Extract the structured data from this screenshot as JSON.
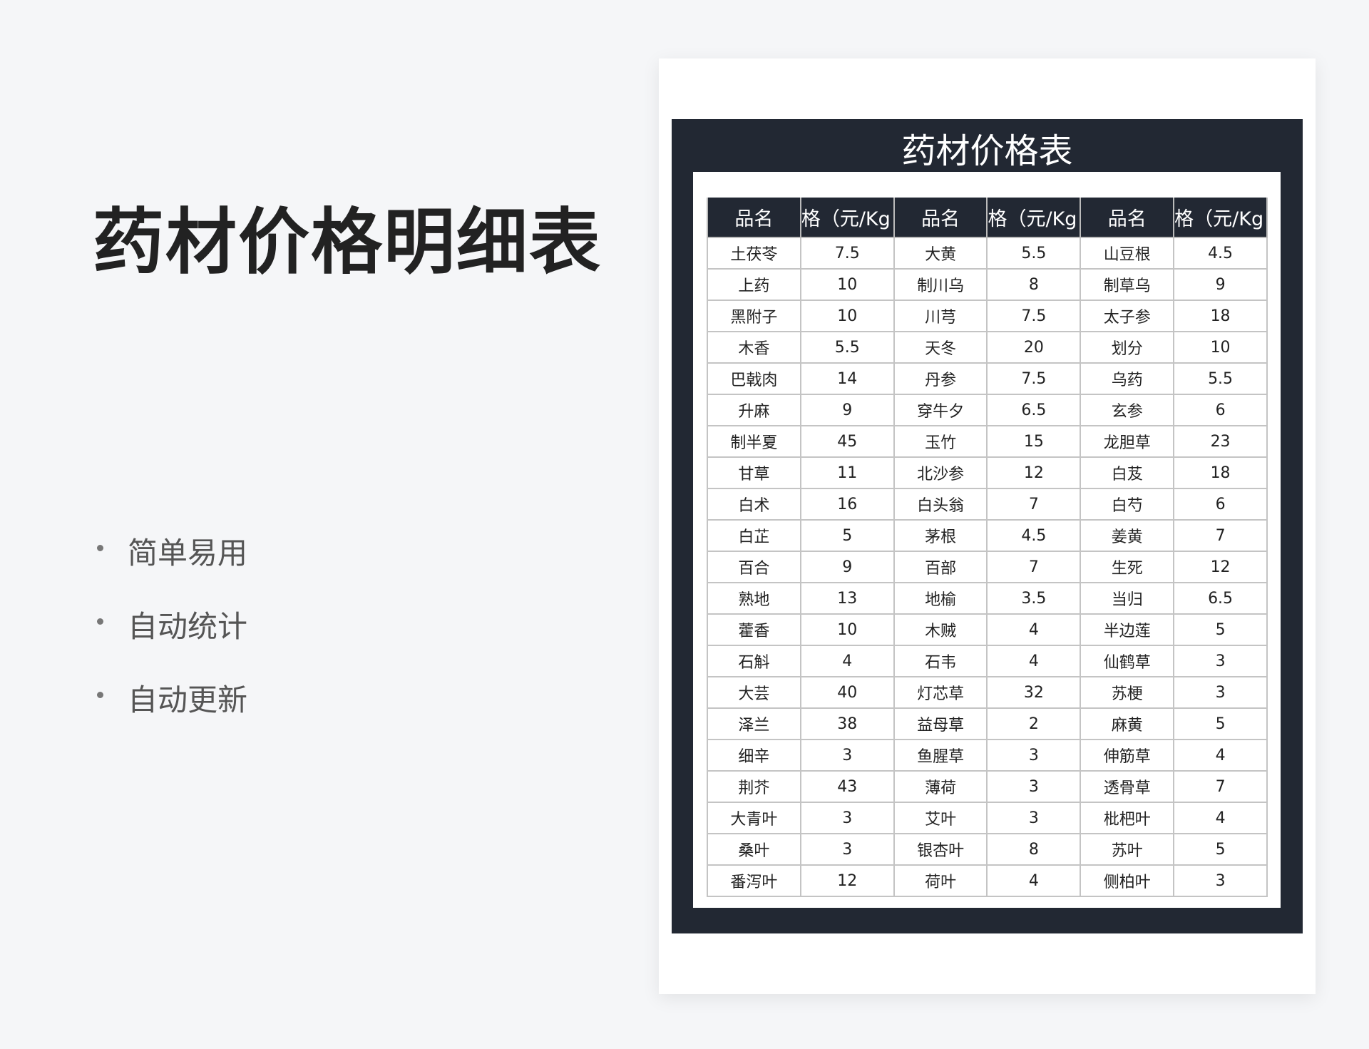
{
  "page_title": "药材价格明细表",
  "features": [
    "简单易用",
    "自动统计",
    "自动更新"
  ],
  "sheet": {
    "title": "药材价格表",
    "headers": [
      "品名",
      "格（元/Kg",
      "品名",
      "格（元/Kg",
      "品名",
      "格（元/Kg"
    ],
    "rows": [
      [
        "土茯苓",
        "7.5",
        "大黄",
        "5.5",
        "山豆根",
        "4.5"
      ],
      [
        "上药",
        "10",
        "制川乌",
        "8",
        "制草乌",
        "9"
      ],
      [
        "黑附子",
        "10",
        "川芎",
        "7.5",
        "太子参",
        "18"
      ],
      [
        "木香",
        "5.5",
        "天冬",
        "20",
        "划分",
        "10"
      ],
      [
        "巴戟肉",
        "14",
        "丹参",
        "7.5",
        "乌药",
        "5.5"
      ],
      [
        "升麻",
        "9",
        "穿牛夕",
        "6.5",
        "玄参",
        "6"
      ],
      [
        "制半夏",
        "45",
        "玉竹",
        "15",
        "龙胆草",
        "23"
      ],
      [
        "甘草",
        "11",
        "北沙参",
        "12",
        "白芨",
        "18"
      ],
      [
        "白术",
        "16",
        "白头翁",
        "7",
        "白芍",
        "6"
      ],
      [
        "白芷",
        "5",
        "茅根",
        "4.5",
        "姜黄",
        "7"
      ],
      [
        "百合",
        "9",
        "百部",
        "7",
        "生死",
        "12"
      ],
      [
        "熟地",
        "13",
        "地榆",
        "3.5",
        "当归",
        "6.5"
      ],
      [
        "藿香",
        "10",
        "木贼",
        "4",
        "半边莲",
        "5"
      ],
      [
        "石斛",
        "4",
        "石韦",
        "4",
        "仙鹤草",
        "3"
      ],
      [
        "大芸",
        "40",
        "灯芯草",
        "32",
        "苏梗",
        "3"
      ],
      [
        "泽兰",
        "38",
        "益母草",
        "2",
        "麻黄",
        "5"
      ],
      [
        "细辛",
        "3",
        "鱼腥草",
        "3",
        "伸筋草",
        "4"
      ],
      [
        "荆芥",
        "43",
        "薄荷",
        "3",
        "透骨草",
        "7"
      ],
      [
        "大青叶",
        "3",
        "艾叶",
        "3",
        "枇杷叶",
        "4"
      ],
      [
        "桑叶",
        "3",
        "银杏叶",
        "8",
        "苏叶",
        "5"
      ],
      [
        "番泻叶",
        "12",
        "荷叶",
        "4",
        "侧柏叶",
        "3"
      ]
    ]
  }
}
